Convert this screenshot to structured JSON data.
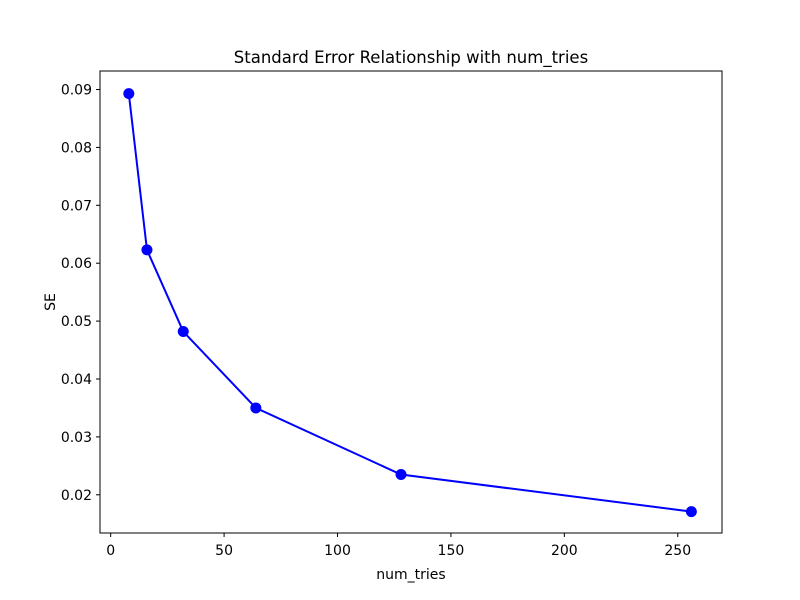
{
  "figure": {
    "background": "#ffffff",
    "plot_background": "#ffffff",
    "spine_color": "#000000",
    "text_color": "#000000"
  },
  "chart_data": {
    "type": "line",
    "title": "Standard Error Relationship with num_tries",
    "xlabel": "num_tries",
    "ylabel": "SE",
    "x": [
      8,
      16,
      32,
      64,
      128,
      256
    ],
    "series": [
      {
        "name": "SE",
        "values": [
          0.0893,
          0.0623,
          0.0482,
          0.035,
          0.0235,
          0.0171
        ]
      }
    ],
    "xticks": [
      0,
      50,
      100,
      150,
      200,
      250
    ],
    "yticks": [
      0.02,
      0.03,
      0.04,
      0.05,
      0.06,
      0.07,
      0.08,
      0.09
    ],
    "xlim": [
      -4.7,
      269.5
    ],
    "ylim": [
      0.0134,
      0.0932
    ],
    "grid": false,
    "legend": "none",
    "line_color": "#0000ff",
    "marker": "o",
    "marker_color": "#0000ff"
  }
}
